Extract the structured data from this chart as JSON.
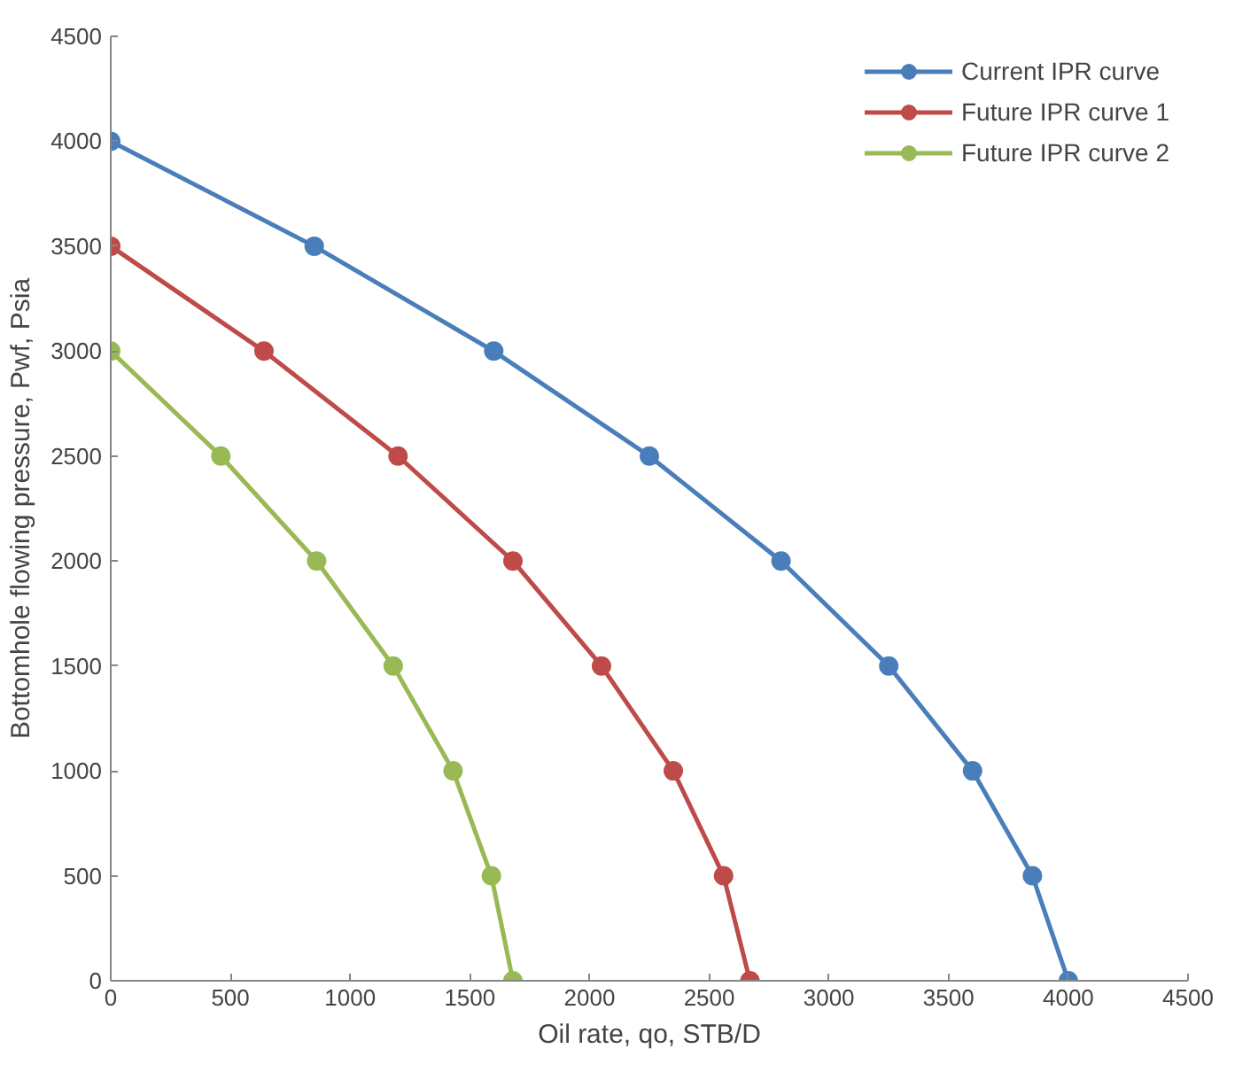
{
  "chart_data": {
    "type": "line",
    "xlabel": "Oil rate, qo, STB/D",
    "ylabel": "Bottomhole flowing pressure, Pwf, Psia",
    "xlim": [
      0,
      4500
    ],
    "xticks": [
      0,
      500,
      1000,
      1500,
      2000,
      2500,
      3000,
      3500,
      4000,
      4500
    ],
    "ylim": [
      0,
      4500
    ],
    "yticks": [
      0,
      500,
      1000,
      1500,
      2000,
      2500,
      3000,
      3500,
      4000,
      4500
    ],
    "grid": false,
    "legend": "top right",
    "marker": "circle",
    "line_style": "solid",
    "series": [
      {
        "name": "Current IPR curve",
        "color": "#4a7ebb",
        "x": [
          0,
          850,
          1600,
          2250,
          2800,
          3250,
          3600,
          3850,
          4000
        ],
        "values": [
          4000,
          3500,
          3000,
          2500,
          2000,
          1500,
          1000,
          500,
          0
        ]
      },
      {
        "name": "Future IPR curve 1",
        "color": "#be4b48",
        "x": [
          0,
          640,
          1200,
          1680,
          2050,
          2350,
          2560,
          2670
        ],
        "values": [
          3500,
          3000,
          2500,
          2000,
          1500,
          1000,
          500,
          0
        ]
      },
      {
        "name": "Future IPR curve 2",
        "color": "#98b954",
        "x": [
          0,
          460,
          860,
          1180,
          1430,
          1590,
          1680
        ],
        "values": [
          3000,
          2500,
          2000,
          1500,
          1000,
          500,
          0
        ]
      }
    ]
  }
}
